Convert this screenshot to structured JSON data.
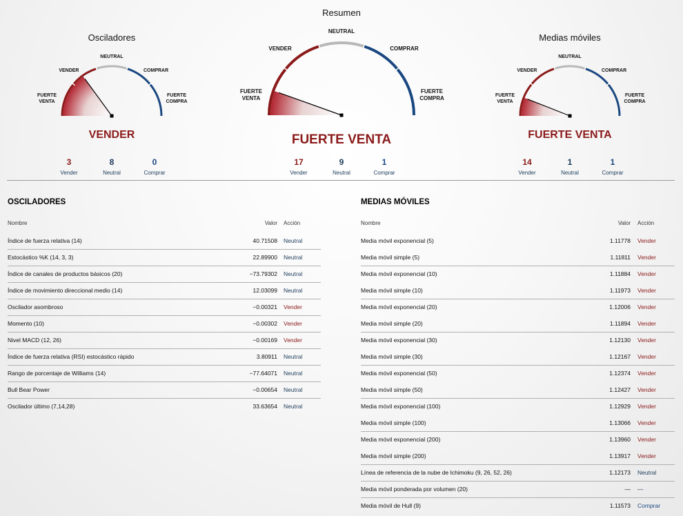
{
  "summary": {
    "title": "Resumen"
  },
  "gauges": [
    {
      "title": "Osciladores",
      "labels": {
        "strong_sell": [
          "FUERTE",
          "VENTA"
        ],
        "sell": "VENDER",
        "neutral": "NEUTRAL",
        "buy": "COMPRAR",
        "strong_buy": [
          "FUERTE",
          "COMPRA"
        ]
      },
      "verdict": "VENDER",
      "needle_fraction": 0.3,
      "counts": {
        "sell": "3",
        "neutral": "8",
        "buy": "0"
      },
      "count_labels": {
        "sell": "Vender",
        "neutral": "Neutral",
        "buy": "Comprar"
      }
    },
    {
      "title": "",
      "labels": {
        "strong_sell": [
          "FUERTE",
          "VENTA"
        ],
        "sell": "VENDER",
        "neutral": "NEUTRAL",
        "buy": "COMPRAR",
        "strong_buy": [
          "FUERTE",
          "COMPRA"
        ]
      },
      "verdict": "FUERTE VENTA",
      "needle_fraction": 0.11,
      "counts": {
        "sell": "17",
        "neutral": "9",
        "buy": "1"
      },
      "count_labels": {
        "sell": "Vender",
        "neutral": "Neutral",
        "buy": "Comprar"
      }
    },
    {
      "title": "Medias móviles",
      "labels": {
        "strong_sell": [
          "FUERTE",
          "VENTA"
        ],
        "sell": "VENDER",
        "neutral": "NEUTRAL",
        "buy": "COMPRAR",
        "strong_buy": [
          "FUERTE",
          "COMPRA"
        ]
      },
      "verdict": "FUERTE VENTA",
      "needle_fraction": 0.12,
      "counts": {
        "sell": "14",
        "neutral": "1",
        "buy": "1"
      },
      "count_labels": {
        "sell": "Vender",
        "neutral": "Neutral",
        "buy": "Comprar"
      }
    }
  ],
  "colors": {
    "sell": "#8b1a1a",
    "neutral": "#1c3b5a",
    "buy": "#1a4780",
    "arc_red": "#8b1a1a",
    "arc_gray": "#b8b8b8",
    "arc_blue": "#1a4780"
  },
  "oscillators": {
    "heading": "OSCILADORES",
    "columns": {
      "name": "Nombre",
      "value": "Valor",
      "action": "Acción"
    },
    "rows": [
      {
        "name": "Índice de fuerza relativa (14)",
        "value": "40.71508",
        "action": "Neutral",
        "type": "neutral"
      },
      {
        "name": "Estocástico %K (14, 3, 3)",
        "value": "22.89900",
        "action": "Neutral",
        "type": "neutral"
      },
      {
        "name": "Índice de canales de productos básicos (20)",
        "value": "−73.79302",
        "action": "Neutral",
        "type": "neutral"
      },
      {
        "name": "Índice de movimiento direccional medio (14)",
        "value": "12.03099",
        "action": "Neutral",
        "type": "neutral"
      },
      {
        "name": "Oscilador asombroso",
        "value": "−0.00321",
        "action": "Vender",
        "type": "sell"
      },
      {
        "name": "Momento (10)",
        "value": "−0.00302",
        "action": "Vender",
        "type": "sell"
      },
      {
        "name": "Nivel MACD (12, 26)",
        "value": "−0.00169",
        "action": "Vender",
        "type": "sell"
      },
      {
        "name": "Índice de fuerza relativa (RSI) estocástico rápido",
        "value": "3.80911",
        "action": "Neutral",
        "type": "neutral"
      },
      {
        "name": "Rango de porcentaje de Williams (14)",
        "value": "−77.64071",
        "action": "Neutral",
        "type": "neutral"
      },
      {
        "name": "Bull Bear Power",
        "value": "−0.00654",
        "action": "Neutral",
        "type": "neutral"
      },
      {
        "name": "Oscilador último (7,14,28)",
        "value": "33.63654",
        "action": "Neutral",
        "type": "neutral"
      }
    ]
  },
  "moving_averages": {
    "heading": "MEDIAS MÓVILES",
    "columns": {
      "name": "Nombre",
      "value": "Valor",
      "action": "Acción"
    },
    "rows": [
      {
        "name": "Media móvil exponencial (5)",
        "value": "1.11778",
        "action": "Vender",
        "type": "sell"
      },
      {
        "name": "Media móvil simple (5)",
        "value": "1.11811",
        "action": "Vender",
        "type": "sell"
      },
      {
        "name": "Media móvil exponencial (10)",
        "value": "1.11884",
        "action": "Vender",
        "type": "sell"
      },
      {
        "name": "Media móvil simple (10)",
        "value": "1.11973",
        "action": "Vender",
        "type": "sell"
      },
      {
        "name": "Media móvil exponencial (20)",
        "value": "1.12006",
        "action": "Vender",
        "type": "sell"
      },
      {
        "name": "Media móvil simple (20)",
        "value": "1.11894",
        "action": "Vender",
        "type": "sell"
      },
      {
        "name": "Media móvil exponencial (30)",
        "value": "1.12130",
        "action": "Vender",
        "type": "sell"
      },
      {
        "name": "Media móvil simple (30)",
        "value": "1.12167",
        "action": "Vender",
        "type": "sell"
      },
      {
        "name": "Media móvil exponencial (50)",
        "value": "1.12374",
        "action": "Vender",
        "type": "sell"
      },
      {
        "name": "Media móvil simple (50)",
        "value": "1.12427",
        "action": "Vender",
        "type": "sell"
      },
      {
        "name": "Media móvil exponencial (100)",
        "value": "1.12929",
        "action": "Vender",
        "type": "sell"
      },
      {
        "name": "Media móvil simple (100)",
        "value": "1.13066",
        "action": "Vender",
        "type": "sell"
      },
      {
        "name": "Media móvil exponencial (200)",
        "value": "1.13960",
        "action": "Vender",
        "type": "sell"
      },
      {
        "name": "Media móvil simple (200)",
        "value": "1.13917",
        "action": "Vender",
        "type": "sell"
      },
      {
        "name": "Línea de referencia de la nube de Ichimoku (9, 26, 52, 26)",
        "value": "1.12173",
        "action": "Neutral",
        "type": "neutral"
      },
      {
        "name": "Media móvil ponderada por volumen (20)",
        "value": "—",
        "action": "—",
        "type": "none"
      },
      {
        "name": "Media móvil de Hull (9)",
        "value": "1.11573",
        "action": "Comprar",
        "type": "buy"
      }
    ]
  }
}
